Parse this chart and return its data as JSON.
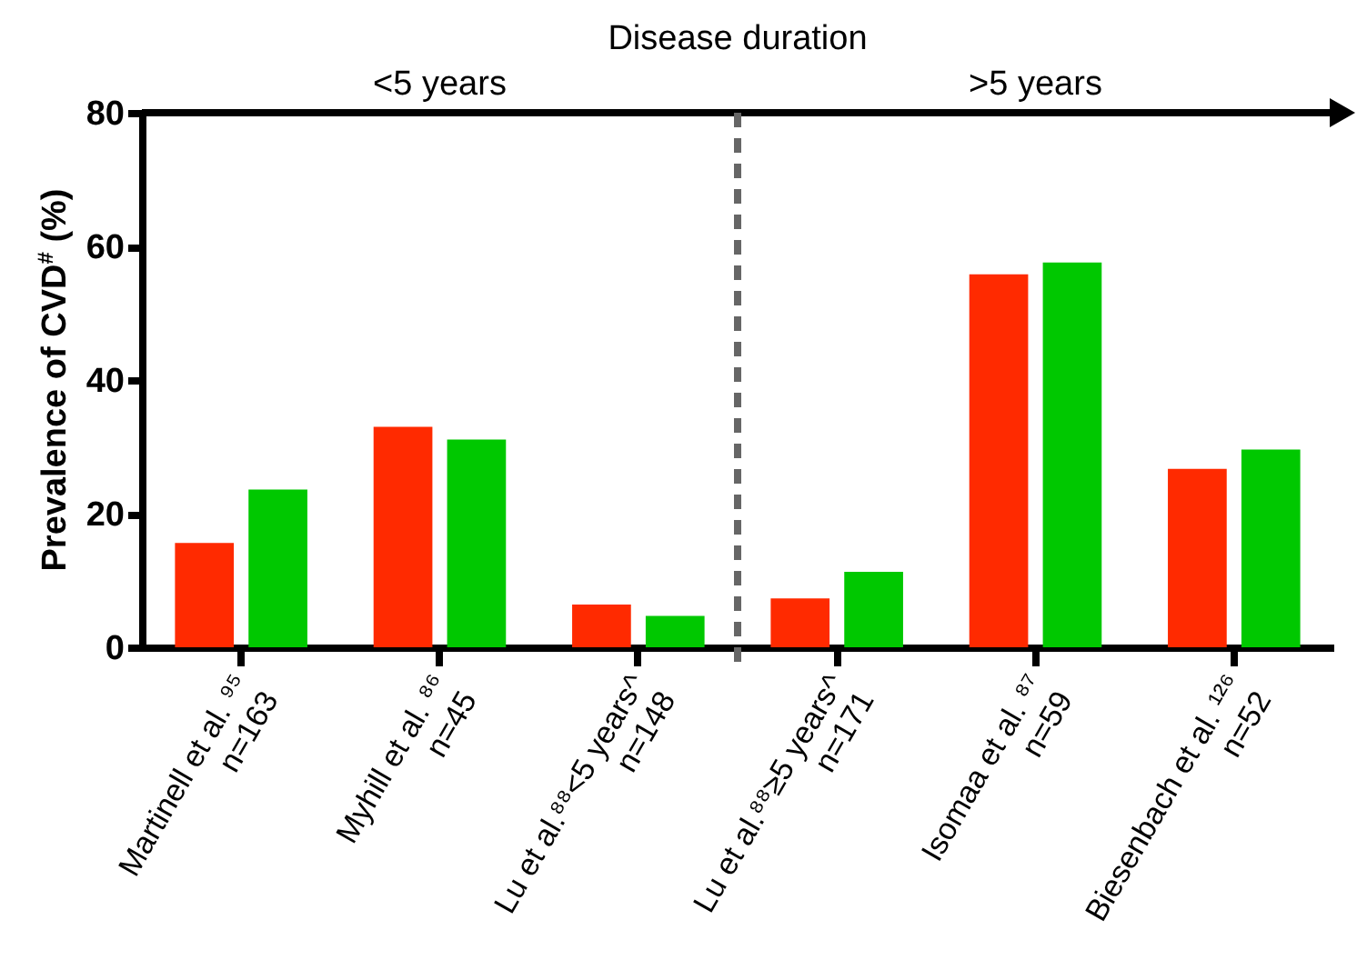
{
  "chart_data": {
    "type": "bar",
    "title": "Disease duration",
    "ylabel": "Prevalence of CVD$^{#}$ (%)",
    "categories": [
      "Martinell et al. ⁹⁵\nn=163",
      "Myhill et al. ⁸⁶\nn=45",
      "Lu et al.⁸⁸<5 years^\nn=148",
      "Lu et al.⁸⁸≥5 years^\nn=171",
      "Isomaa et al. ⁸⁷\nn=59",
      "Biesenbach et al. ¹²⁶\nn=52"
    ],
    "series": [
      {
        "color": "#ff2a00",
        "values": [
          15.6,
          33,
          6.4,
          7.3,
          55.8,
          26.7
        ]
      },
      {
        "color": "#00c800",
        "values": [
          23.6,
          31.1,
          4.7,
          11.3,
          57.6,
          29.6
        ]
      }
    ],
    "ylim": [
      0,
      80
    ],
    "yticks": [
      0,
      20,
      40,
      60,
      80
    ],
    "ref_lines": [
      {
        "axis": "x",
        "value": "Lu et al.⁸⁸≥5 years^\nn=171",
        "color": "#666666",
        "line_style": "dashed"
      }
    ],
    "annotations": [
      "<5 years",
      ">5 years"
    ],
    "grid": false,
    "legend": false
  }
}
